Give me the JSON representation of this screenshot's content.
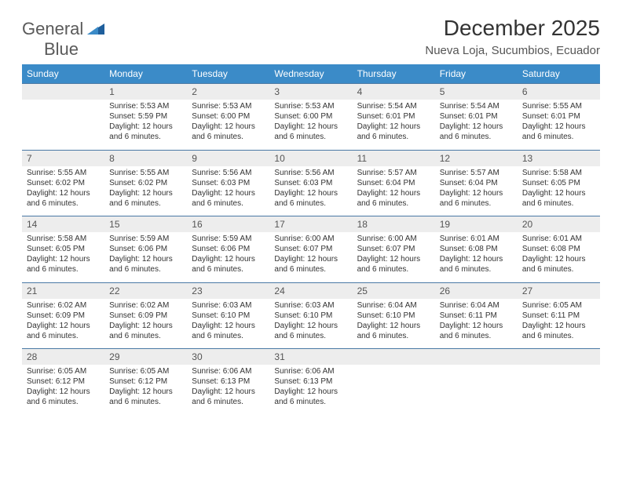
{
  "logo": {
    "line1": "General",
    "line2": "Blue"
  },
  "title": "December 2025",
  "location": "Nueva Loja, Sucumbios, Ecuador",
  "colors": {
    "header_bg": "#3b8bc8",
    "header_text": "#ffffff",
    "daynum_bg": "#ededed",
    "row_border": "#4a79a5",
    "body_text": "#333333",
    "logo_gray": "#5a5a5a",
    "logo_blue": "#2a7ab9"
  },
  "weekdays": [
    "Sunday",
    "Monday",
    "Tuesday",
    "Wednesday",
    "Thursday",
    "Friday",
    "Saturday"
  ],
  "weeks": [
    {
      "nums": [
        "",
        "1",
        "2",
        "3",
        "4",
        "5",
        "6"
      ],
      "cells": [
        null,
        {
          "sunrise": "Sunrise: 5:53 AM",
          "sunset": "Sunset: 5:59 PM",
          "day1": "Daylight: 12 hours",
          "day2": "and 6 minutes."
        },
        {
          "sunrise": "Sunrise: 5:53 AM",
          "sunset": "Sunset: 6:00 PM",
          "day1": "Daylight: 12 hours",
          "day2": "and 6 minutes."
        },
        {
          "sunrise": "Sunrise: 5:53 AM",
          "sunset": "Sunset: 6:00 PM",
          "day1": "Daylight: 12 hours",
          "day2": "and 6 minutes."
        },
        {
          "sunrise": "Sunrise: 5:54 AM",
          "sunset": "Sunset: 6:01 PM",
          "day1": "Daylight: 12 hours",
          "day2": "and 6 minutes."
        },
        {
          "sunrise": "Sunrise: 5:54 AM",
          "sunset": "Sunset: 6:01 PM",
          "day1": "Daylight: 12 hours",
          "day2": "and 6 minutes."
        },
        {
          "sunrise": "Sunrise: 5:55 AM",
          "sunset": "Sunset: 6:01 PM",
          "day1": "Daylight: 12 hours",
          "day2": "and 6 minutes."
        }
      ]
    },
    {
      "nums": [
        "7",
        "8",
        "9",
        "10",
        "11",
        "12",
        "13"
      ],
      "cells": [
        {
          "sunrise": "Sunrise: 5:55 AM",
          "sunset": "Sunset: 6:02 PM",
          "day1": "Daylight: 12 hours",
          "day2": "and 6 minutes."
        },
        {
          "sunrise": "Sunrise: 5:55 AM",
          "sunset": "Sunset: 6:02 PM",
          "day1": "Daylight: 12 hours",
          "day2": "and 6 minutes."
        },
        {
          "sunrise": "Sunrise: 5:56 AM",
          "sunset": "Sunset: 6:03 PM",
          "day1": "Daylight: 12 hours",
          "day2": "and 6 minutes."
        },
        {
          "sunrise": "Sunrise: 5:56 AM",
          "sunset": "Sunset: 6:03 PM",
          "day1": "Daylight: 12 hours",
          "day2": "and 6 minutes."
        },
        {
          "sunrise": "Sunrise: 5:57 AM",
          "sunset": "Sunset: 6:04 PM",
          "day1": "Daylight: 12 hours",
          "day2": "and 6 minutes."
        },
        {
          "sunrise": "Sunrise: 5:57 AM",
          "sunset": "Sunset: 6:04 PM",
          "day1": "Daylight: 12 hours",
          "day2": "and 6 minutes."
        },
        {
          "sunrise": "Sunrise: 5:58 AM",
          "sunset": "Sunset: 6:05 PM",
          "day1": "Daylight: 12 hours",
          "day2": "and 6 minutes."
        }
      ]
    },
    {
      "nums": [
        "14",
        "15",
        "16",
        "17",
        "18",
        "19",
        "20"
      ],
      "cells": [
        {
          "sunrise": "Sunrise: 5:58 AM",
          "sunset": "Sunset: 6:05 PM",
          "day1": "Daylight: 12 hours",
          "day2": "and 6 minutes."
        },
        {
          "sunrise": "Sunrise: 5:59 AM",
          "sunset": "Sunset: 6:06 PM",
          "day1": "Daylight: 12 hours",
          "day2": "and 6 minutes."
        },
        {
          "sunrise": "Sunrise: 5:59 AM",
          "sunset": "Sunset: 6:06 PM",
          "day1": "Daylight: 12 hours",
          "day2": "and 6 minutes."
        },
        {
          "sunrise": "Sunrise: 6:00 AM",
          "sunset": "Sunset: 6:07 PM",
          "day1": "Daylight: 12 hours",
          "day2": "and 6 minutes."
        },
        {
          "sunrise": "Sunrise: 6:00 AM",
          "sunset": "Sunset: 6:07 PM",
          "day1": "Daylight: 12 hours",
          "day2": "and 6 minutes."
        },
        {
          "sunrise": "Sunrise: 6:01 AM",
          "sunset": "Sunset: 6:08 PM",
          "day1": "Daylight: 12 hours",
          "day2": "and 6 minutes."
        },
        {
          "sunrise": "Sunrise: 6:01 AM",
          "sunset": "Sunset: 6:08 PM",
          "day1": "Daylight: 12 hours",
          "day2": "and 6 minutes."
        }
      ]
    },
    {
      "nums": [
        "21",
        "22",
        "23",
        "24",
        "25",
        "26",
        "27"
      ],
      "cells": [
        {
          "sunrise": "Sunrise: 6:02 AM",
          "sunset": "Sunset: 6:09 PM",
          "day1": "Daylight: 12 hours",
          "day2": "and 6 minutes."
        },
        {
          "sunrise": "Sunrise: 6:02 AM",
          "sunset": "Sunset: 6:09 PM",
          "day1": "Daylight: 12 hours",
          "day2": "and 6 minutes."
        },
        {
          "sunrise": "Sunrise: 6:03 AM",
          "sunset": "Sunset: 6:10 PM",
          "day1": "Daylight: 12 hours",
          "day2": "and 6 minutes."
        },
        {
          "sunrise": "Sunrise: 6:03 AM",
          "sunset": "Sunset: 6:10 PM",
          "day1": "Daylight: 12 hours",
          "day2": "and 6 minutes."
        },
        {
          "sunrise": "Sunrise: 6:04 AM",
          "sunset": "Sunset: 6:10 PM",
          "day1": "Daylight: 12 hours",
          "day2": "and 6 minutes."
        },
        {
          "sunrise": "Sunrise: 6:04 AM",
          "sunset": "Sunset: 6:11 PM",
          "day1": "Daylight: 12 hours",
          "day2": "and 6 minutes."
        },
        {
          "sunrise": "Sunrise: 6:05 AM",
          "sunset": "Sunset: 6:11 PM",
          "day1": "Daylight: 12 hours",
          "day2": "and 6 minutes."
        }
      ]
    },
    {
      "nums": [
        "28",
        "29",
        "30",
        "31",
        "",
        "",
        ""
      ],
      "cells": [
        {
          "sunrise": "Sunrise: 6:05 AM",
          "sunset": "Sunset: 6:12 PM",
          "day1": "Daylight: 12 hours",
          "day2": "and 6 minutes."
        },
        {
          "sunrise": "Sunrise: 6:05 AM",
          "sunset": "Sunset: 6:12 PM",
          "day1": "Daylight: 12 hours",
          "day2": "and 6 minutes."
        },
        {
          "sunrise": "Sunrise: 6:06 AM",
          "sunset": "Sunset: 6:13 PM",
          "day1": "Daylight: 12 hours",
          "day2": "and 6 minutes."
        },
        {
          "sunrise": "Sunrise: 6:06 AM",
          "sunset": "Sunset: 6:13 PM",
          "day1": "Daylight: 12 hours",
          "day2": "and 6 minutes."
        },
        null,
        null,
        null
      ]
    }
  ]
}
